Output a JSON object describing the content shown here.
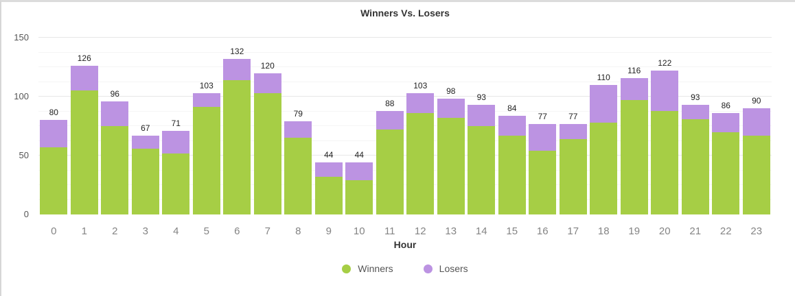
{
  "title": "Winners Vs. Losers",
  "xaxis_title": "Hour",
  "legend": {
    "items": [
      {
        "label": "Winners",
        "color": "#a6ce45"
      },
      {
        "label": "Losers",
        "color": "#bc93e2"
      }
    ]
  },
  "chart_data": {
    "type": "bar",
    "stacked": true,
    "title": "Winners Vs. Losers",
    "xlabel": "Hour",
    "ylabel": "",
    "ylim": [
      0,
      150
    ],
    "yticks": [
      0,
      50,
      100,
      150
    ],
    "minor_grid_step": 12.5,
    "grid": true,
    "legend_position": "bottom",
    "categories": [
      0,
      1,
      2,
      3,
      4,
      5,
      6,
      7,
      8,
      9,
      10,
      11,
      12,
      13,
      14,
      15,
      16,
      17,
      18,
      19,
      20,
      21,
      22,
      23
    ],
    "series": [
      {
        "name": "Winners",
        "color": "#a6ce45",
        "values": [
          57,
          105,
          75,
          56,
          52,
          91,
          114,
          103,
          65,
          32,
          29,
          72,
          86,
          82,
          75,
          67,
          54,
          64,
          78,
          97,
          88,
          81,
          70,
          67
        ]
      },
      {
        "name": "Losers",
        "color": "#bc93e2",
        "values": [
          23,
          21,
          21,
          11,
          19,
          12,
          18,
          17,
          14,
          12,
          15,
          16,
          17,
          16,
          18,
          17,
          23,
          13,
          32,
          19,
          34,
          12,
          16,
          23
        ]
      }
    ],
    "totals": [
      80,
      126,
      96,
      67,
      71,
      103,
      132,
      120,
      79,
      44,
      44,
      88,
      103,
      98,
      93,
      84,
      77,
      77,
      110,
      116,
      122,
      93,
      86,
      90
    ]
  }
}
